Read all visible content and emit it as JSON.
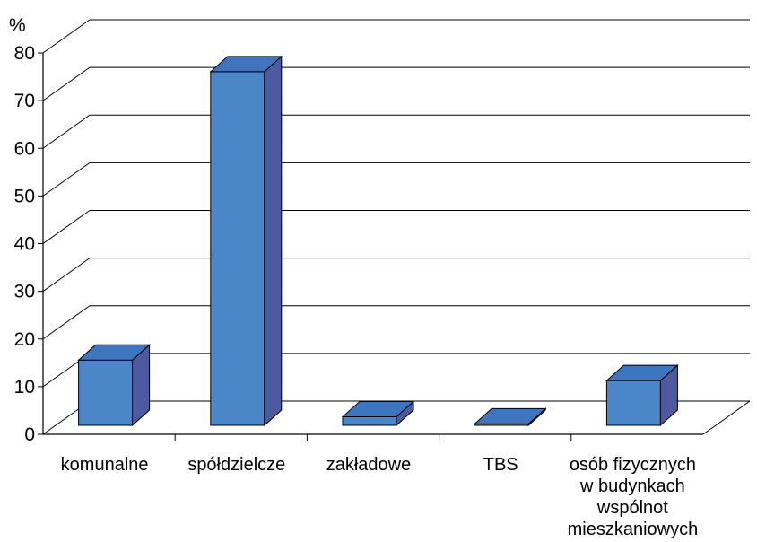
{
  "chart_data": {
    "type": "bar",
    "three_d": true,
    "ylabel": "%",
    "ylim": [
      0,
      80
    ],
    "yticks": [
      "0",
      "10",
      "20",
      "30",
      "40",
      "50",
      "60",
      "70",
      "80"
    ],
    "grid": true,
    "categories": [
      [
        "komunalne"
      ],
      [
        "spółdzielcze"
      ],
      [
        "zakładowe"
      ],
      [
        "TBS"
      ],
      [
        "osób fizycznych",
        "w budynkach",
        "wspólnot",
        "mieszkaniowych"
      ]
    ],
    "values": [
      13.7,
      74.2,
      1.8,
      0.3,
      9.4
    ],
    "colors": {
      "bar_front": "#4a86c8",
      "bar_side": "#4e5aa0",
      "bar_top": "#3f74bf",
      "outline": "#000000",
      "grid": "#000000"
    }
  }
}
